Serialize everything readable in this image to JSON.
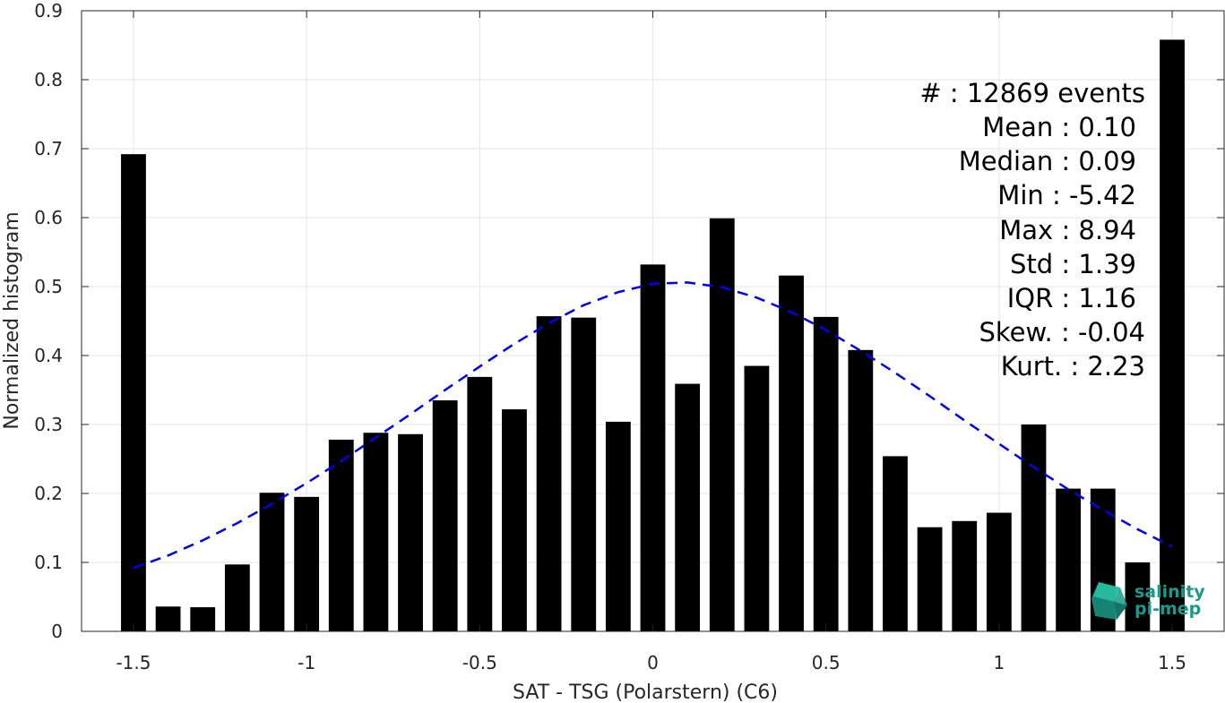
{
  "chart_data": {
    "type": "bar",
    "xlabel": "SAT - TSG (Polarstern) (C6)",
    "ylabel": "Normalized histogram",
    "xlim": [
      -1.65,
      1.65
    ],
    "ylim": [
      0,
      0.9
    ],
    "xticks": [
      -1.5,
      -1,
      -0.5,
      0,
      0.5,
      1,
      1.5
    ],
    "xtick_labels": [
      "-1.5",
      "-1",
      "-0.5",
      "0",
      "0.5",
      "1",
      "1.5"
    ],
    "yticks": [
      0,
      0.1,
      0.2,
      0.3,
      0.4,
      0.5,
      0.6,
      0.7,
      0.8,
      0.9
    ],
    "ytick_labels": [
      "0",
      "0.1",
      "0.2",
      "0.3",
      "0.4",
      "0.5",
      "0.6",
      "0.7",
      "0.8",
      "0.9"
    ],
    "grid": true,
    "bar_color": "#000000",
    "bin_centers": [
      -1.5,
      -1.4,
      -1.3,
      -1.2,
      -1.1,
      -1.0,
      -0.9,
      -0.8,
      -0.7,
      -0.6,
      -0.5,
      -0.4,
      -0.3,
      -0.2,
      -0.1,
      0.0,
      0.1,
      0.2,
      0.3,
      0.4,
      0.5,
      0.6,
      0.7,
      0.8,
      0.9,
      1.0,
      1.1,
      1.2,
      1.3,
      1.4,
      1.5
    ],
    "values": [
      0.692,
      0.036,
      0.035,
      0.097,
      0.201,
      0.195,
      0.278,
      0.288,
      0.286,
      0.335,
      0.369,
      0.322,
      0.457,
      0.455,
      0.304,
      0.532,
      0.359,
      0.599,
      0.385,
      0.516,
      0.456,
      0.408,
      0.254,
      0.151,
      0.16,
      0.172,
      0.3,
      0.207,
      0.207,
      0.1,
      0.858
    ],
    "fit_curve": {
      "style": "dashed",
      "color": "#0000ee",
      "x": [
        -1.5,
        -1.4,
        -1.3,
        -1.2,
        -1.1,
        -1.0,
        -0.9,
        -0.8,
        -0.7,
        -0.6,
        -0.5,
        -0.4,
        -0.3,
        -0.2,
        -0.1,
        0.0,
        0.1,
        0.2,
        0.3,
        0.4,
        0.5,
        0.6,
        0.7,
        0.8,
        0.9,
        1.0,
        1.1,
        1.2,
        1.3,
        1.4,
        1.5
      ],
      "y": [
        0.092,
        0.11,
        0.132,
        0.157,
        0.185,
        0.215,
        0.247,
        0.281,
        0.315,
        0.35,
        0.384,
        0.417,
        0.447,
        0.473,
        0.492,
        0.504,
        0.506,
        0.499,
        0.484,
        0.463,
        0.437,
        0.407,
        0.375,
        0.341,
        0.306,
        0.272,
        0.238,
        0.206,
        0.176,
        0.148,
        0.123
      ]
    }
  },
  "stats": [
    {
      "label": "#",
      "value": ": 12869 events"
    },
    {
      "label": "Mean",
      "value": ": 0.10"
    },
    {
      "label": "Median",
      "value": ": 0.09"
    },
    {
      "label": "Min",
      "value": ": -5.42"
    },
    {
      "label": "Max",
      "value": ": 8.94"
    },
    {
      "label": "Std",
      "value": ": 1.39"
    },
    {
      "label": "IQR",
      "value": ": 1.16"
    },
    {
      "label": "Skew.",
      "value": ": -0.04"
    },
    {
      "label": "Kurt.",
      "value": ": 2.23"
    }
  ],
  "logo": {
    "line1": "salinity",
    "line2": "pi-mep",
    "color": "#1a9a8a",
    "icon": "cube-logo-icon"
  }
}
